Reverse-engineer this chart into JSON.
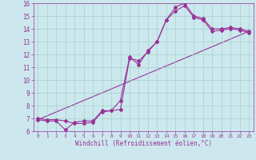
{
  "xlabel": "Windchill (Refroidissement éolien,°C)",
  "background_color": "#cce8ee",
  "line_color": "#993399",
  "grid_color": "#99ccbb",
  "xlim": [
    -0.5,
    23.5
  ],
  "ylim": [
    6,
    16
  ],
  "xticks": [
    0,
    1,
    2,
    3,
    4,
    5,
    6,
    7,
    8,
    9,
    10,
    11,
    12,
    13,
    14,
    15,
    16,
    17,
    18,
    19,
    20,
    21,
    22,
    23
  ],
  "yticks": [
    6,
    7,
    8,
    9,
    10,
    11,
    12,
    13,
    14,
    15,
    16
  ],
  "series1_x": [
    0,
    1,
    2,
    3,
    4,
    5,
    6,
    7,
    8,
    9,
    10,
    11,
    12,
    13,
    14,
    15,
    16,
    17,
    18,
    19,
    20,
    21,
    22,
    23
  ],
  "series1_y": [
    7.0,
    6.9,
    6.9,
    6.8,
    6.6,
    6.6,
    6.7,
    7.5,
    7.6,
    7.7,
    11.7,
    11.5,
    12.2,
    13.0,
    14.7,
    15.7,
    16.0,
    15.0,
    14.8,
    14.0,
    14.0,
    14.1,
    14.0,
    13.8
  ],
  "series2_x": [
    0,
    1,
    2,
    3,
    4,
    5,
    6,
    7,
    8,
    9,
    10,
    11,
    12,
    13,
    14,
    15,
    16,
    17,
    18,
    19,
    20,
    21,
    22,
    23
  ],
  "series2_y": [
    6.9,
    6.8,
    6.8,
    6.1,
    6.7,
    6.8,
    6.8,
    7.6,
    7.6,
    8.4,
    11.8,
    11.2,
    12.3,
    13.0,
    14.7,
    15.4,
    15.8,
    14.9,
    14.7,
    13.8,
    13.9,
    14.0,
    13.9,
    13.7
  ],
  "series3_x": [
    0,
    23
  ],
  "series3_y": [
    6.9,
    13.8
  ]
}
